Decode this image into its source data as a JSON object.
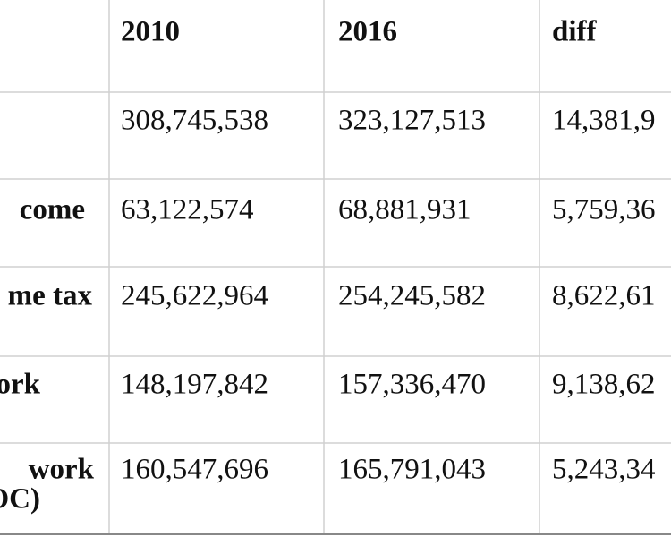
{
  "table": {
    "header": [
      "2010",
      "2016",
      "diff"
    ],
    "rows": [
      {
        "values": [
          "308,745,538",
          "323,127,513",
          "14,381,9"
        ]
      },
      {
        "label": [
          "come"
        ],
        "values": [
          "63,122,574",
          "68,881,931",
          "5,759,36"
        ]
      },
      {
        "label": [
          "me tax"
        ],
        "values": [
          "245,622,964",
          "254,245,582",
          "8,622,61"
        ]
      },
      {
        "label": [
          "ork"
        ],
        "values": [
          "148,197,842",
          "157,336,470",
          "9,138,62"
        ]
      },
      {
        "label": [
          "work",
          "OC)"
        ],
        "values": [
          "160,547,696",
          "165,791,043",
          "5,243,34"
        ]
      }
    ]
  }
}
